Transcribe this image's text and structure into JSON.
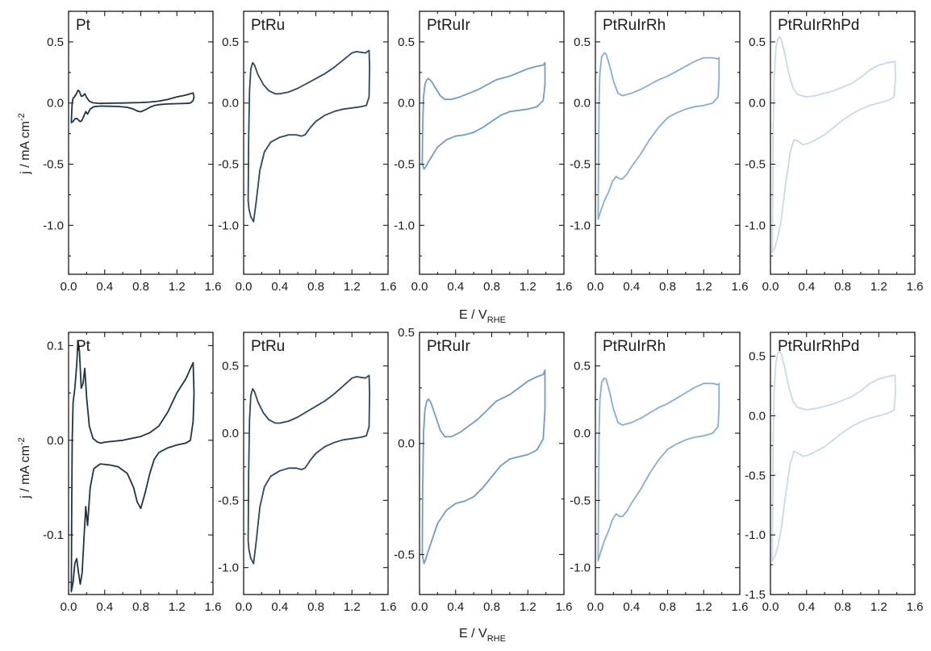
{
  "chart_data": {
    "type": "line",
    "description_axes": {
      "xlabel_main": "E / V",
      "xlabel_sub": "RHE",
      "ylabel_main": "j / mA cm",
      "ylabel_sup": "-2"
    },
    "colors": {
      "Pt": "#1e3448",
      "PtRu": "#2c4860",
      "PtRuIr": "#6f9cc6",
      "PtRuIrRh": "#85aed4",
      "PtRuIrRhPd": "#c6daec"
    },
    "x_ticks": [
      "0.0",
      "0.4",
      "0.8",
      "1.2",
      "1.6"
    ],
    "xlim": [
      0,
      1.6
    ],
    "rows": [
      {
        "row": "top",
        "panels": [
          {
            "title": "Pt",
            "series": "Pt",
            "ylim": [
              -1.4,
              0.75
            ],
            "y_ticks": [
              -1.0,
              -0.5,
              0.0,
              0.5
            ],
            "y_labels": [
              "-1.0",
              "-0.5",
              "0.0",
              "0.5"
            ],
            "show_ylabels": true
          },
          {
            "title": "PtRu",
            "series": "PtRu",
            "ylim": [
              -1.4,
              0.75
            ],
            "y_ticks": [
              -1.0,
              -0.5,
              0.0,
              0.5
            ],
            "y_labels": [
              "-1.0",
              "-0.5",
              "0.0",
              "0.5"
            ],
            "show_ylabels": true
          },
          {
            "title": "PtRuIr",
            "series": "PtRuIr",
            "ylim": [
              -1.4,
              0.75
            ],
            "y_ticks": [
              -1.0,
              -0.5,
              0.0,
              0.5
            ],
            "y_labels": [
              "-1.0",
              "-0.5",
              "0.0",
              "0.5"
            ],
            "show_ylabels": true
          },
          {
            "title": "PtRuIrRh",
            "series": "PtRuIrRh",
            "ylim": [
              -1.4,
              0.75
            ],
            "y_ticks": [
              -1.0,
              -0.5,
              0.0,
              0.5
            ],
            "y_labels": [
              "-1.0",
              "-0.5",
              "0.0",
              "0.5"
            ],
            "show_ylabels": true
          },
          {
            "title": "PtRuIrRhPd",
            "series": "PtRuIrRhPd",
            "ylim": [
              -1.4,
              0.75
            ],
            "y_ticks": [
              -1.0,
              -0.5,
              0.0,
              0.5
            ],
            "y_labels": [
              "-1.0",
              "-0.5",
              "0.0",
              "0.5"
            ],
            "show_ylabels": true
          }
        ]
      },
      {
        "row": "bottom",
        "panels": [
          {
            "title": "Pt",
            "series": "Pt",
            "ylim": [
              -0.163,
              0.114
            ],
            "y_ticks": [
              -0.1,
              0.0,
              0.1
            ],
            "y_labels": [
              "-0.1",
              "0.0",
              "0.1"
            ],
            "show_ylabels": true
          },
          {
            "title": "PtRu",
            "series": "PtRu",
            "ylim": [
              -1.2,
              0.75
            ],
            "y_ticks": [
              -1.0,
              -0.5,
              0.0,
              0.5
            ],
            "y_labels": [
              "-1.0",
              "-0.5",
              "0.0",
              "0.5"
            ],
            "show_ylabels": true
          },
          {
            "title": "PtRuIr",
            "series": "PtRuIr",
            "ylim": [
              -0.68,
              0.5
            ],
            "y_ticks": [
              -0.5,
              0.0,
              0.5
            ],
            "y_labels": [
              "-0.5",
              "0.0",
              "0.5"
            ],
            "show_ylabels": true
          },
          {
            "title": "PtRuIrRh",
            "series": "PtRuIrRh",
            "ylim": [
              -1.2,
              0.75
            ],
            "y_ticks": [
              -1.0,
              -0.5,
              0.0,
              0.5
            ],
            "y_labels": [
              "-1.0",
              "-0.5",
              "0.0",
              "0.5"
            ],
            "show_ylabels": true
          },
          {
            "title": "PtRuIrRhPd",
            "series": "PtRuIrRhPd",
            "ylim": [
              -1.5,
              0.7
            ],
            "y_ticks": [
              -1.5,
              -1.0,
              -0.5,
              0.0,
              0.5
            ],
            "y_labels": [
              "-1.5",
              "-1.0",
              "-0.5",
              "0.0",
              "0.5"
            ],
            "show_ylabels": true
          }
        ]
      }
    ],
    "series": {
      "Pt": [
        [
          0.03,
          -0.16
        ],
        [
          0.035,
          -0.07
        ],
        [
          0.04,
          0.0
        ],
        [
          0.05,
          0.04
        ],
        [
          0.07,
          0.055
        ],
        [
          0.09,
          0.08
        ],
        [
          0.105,
          0.105
        ],
        [
          0.12,
          0.095
        ],
        [
          0.14,
          0.055
        ],
        [
          0.16,
          0.06
        ],
        [
          0.18,
          0.076
        ],
        [
          0.2,
          0.045
        ],
        [
          0.23,
          0.015
        ],
        [
          0.27,
          0.002
        ],
        [
          0.32,
          -0.002
        ],
        [
          0.36,
          -0.003
        ],
        [
          0.4,
          -0.002
        ],
        [
          0.6,
          0.0
        ],
        [
          0.8,
          0.004
        ],
        [
          0.9,
          0.008
        ],
        [
          1.0,
          0.015
        ],
        [
          1.1,
          0.03
        ],
        [
          1.2,
          0.05
        ],
        [
          1.3,
          0.065
        ],
        [
          1.38,
          0.082
        ],
        [
          1.39,
          0.05
        ],
        [
          1.38,
          0.02
        ],
        [
          1.35,
          0.0
        ],
        [
          1.3,
          -0.003
        ],
        [
          1.2,
          -0.005
        ],
        [
          1.1,
          -0.008
        ],
        [
          1.0,
          -0.013
        ],
        [
          0.95,
          -0.02
        ],
        [
          0.9,
          -0.035
        ],
        [
          0.85,
          -0.055
        ],
        [
          0.8,
          -0.072
        ],
        [
          0.76,
          -0.065
        ],
        [
          0.72,
          -0.05
        ],
        [
          0.65,
          -0.035
        ],
        [
          0.55,
          -0.028
        ],
        [
          0.45,
          -0.026
        ],
        [
          0.35,
          -0.025
        ],
        [
          0.28,
          -0.03
        ],
        [
          0.24,
          -0.05
        ],
        [
          0.21,
          -0.09
        ],
        [
          0.19,
          -0.07
        ],
        [
          0.17,
          -0.105
        ],
        [
          0.15,
          -0.14
        ],
        [
          0.13,
          -0.152
        ],
        [
          0.11,
          -0.14
        ],
        [
          0.09,
          -0.125
        ],
        [
          0.07,
          -0.13
        ],
        [
          0.05,
          -0.15
        ],
        [
          0.03,
          -0.16
        ]
      ],
      "PtRu": [
        [
          0.05,
          -0.8
        ],
        [
          0.055,
          -0.3
        ],
        [
          0.065,
          0.1
        ],
        [
          0.08,
          0.28
        ],
        [
          0.1,
          0.33
        ],
        [
          0.12,
          0.31
        ],
        [
          0.16,
          0.23
        ],
        [
          0.22,
          0.15
        ],
        [
          0.28,
          0.1
        ],
        [
          0.35,
          0.075
        ],
        [
          0.4,
          0.075
        ],
        [
          0.5,
          0.09
        ],
        [
          0.6,
          0.12
        ],
        [
          0.7,
          0.16
        ],
        [
          0.8,
          0.2
        ],
        [
          0.9,
          0.24
        ],
        [
          1.0,
          0.29
        ],
        [
          1.1,
          0.35
        ],
        [
          1.2,
          0.41
        ],
        [
          1.25,
          0.42
        ],
        [
          1.3,
          0.415
        ],
        [
          1.35,
          0.41
        ],
        [
          1.39,
          0.43
        ],
        [
          1.395,
          0.3
        ],
        [
          1.39,
          0.05
        ],
        [
          1.36,
          -0.02
        ],
        [
          1.3,
          -0.03
        ],
        [
          1.2,
          -0.04
        ],
        [
          1.1,
          -0.05
        ],
        [
          1.0,
          -0.07
        ],
        [
          0.9,
          -0.1
        ],
        [
          0.8,
          -0.15
        ],
        [
          0.74,
          -0.2
        ],
        [
          0.68,
          -0.26
        ],
        [
          0.64,
          -0.27
        ],
        [
          0.58,
          -0.26
        ],
        [
          0.5,
          -0.26
        ],
        [
          0.4,
          -0.28
        ],
        [
          0.3,
          -0.32
        ],
        [
          0.23,
          -0.4
        ],
        [
          0.18,
          -0.55
        ],
        [
          0.14,
          -0.8
        ],
        [
          0.11,
          -0.97
        ],
        [
          0.08,
          -0.93
        ],
        [
          0.06,
          -0.87
        ],
        [
          0.05,
          -0.8
        ]
      ],
      "PtRuIr": [
        [
          0.03,
          -0.5
        ],
        [
          0.035,
          -0.2
        ],
        [
          0.045,
          0.05
        ],
        [
          0.06,
          0.15
        ],
        [
          0.08,
          0.19
        ],
        [
          0.1,
          0.2
        ],
        [
          0.13,
          0.18
        ],
        [
          0.18,
          0.12
        ],
        [
          0.23,
          0.06
        ],
        [
          0.28,
          0.03
        ],
        [
          0.35,
          0.03
        ],
        [
          0.45,
          0.05
        ],
        [
          0.55,
          0.08
        ],
        [
          0.65,
          0.11
        ],
        [
          0.75,
          0.15
        ],
        [
          0.85,
          0.19
        ],
        [
          1.0,
          0.22
        ],
        [
          1.1,
          0.25
        ],
        [
          1.2,
          0.28
        ],
        [
          1.3,
          0.3
        ],
        [
          1.37,
          0.31
        ],
        [
          1.39,
          0.33
        ],
        [
          1.39,
          0.15
        ],
        [
          1.37,
          0.02
        ],
        [
          1.3,
          -0.03
        ],
        [
          1.2,
          -0.05
        ],
        [
          1.1,
          -0.06
        ],
        [
          1.0,
          -0.07
        ],
        [
          0.9,
          -0.1
        ],
        [
          0.8,
          -0.15
        ],
        [
          0.7,
          -0.2
        ],
        [
          0.6,
          -0.24
        ],
        [
          0.5,
          -0.26
        ],
        [
          0.4,
          -0.27
        ],
        [
          0.3,
          -0.3
        ],
        [
          0.2,
          -0.36
        ],
        [
          0.15,
          -0.42
        ],
        [
          0.1,
          -0.48
        ],
        [
          0.07,
          -0.52
        ],
        [
          0.05,
          -0.54
        ],
        [
          0.03,
          -0.5
        ]
      ],
      "PtRuIrRh": [
        [
          0.03,
          -0.95
        ],
        [
          0.035,
          -0.5
        ],
        [
          0.04,
          0.0
        ],
        [
          0.05,
          0.25
        ],
        [
          0.07,
          0.38
        ],
        [
          0.1,
          0.41
        ],
        [
          0.12,
          0.4
        ],
        [
          0.16,
          0.3
        ],
        [
          0.2,
          0.18
        ],
        [
          0.25,
          0.08
        ],
        [
          0.3,
          0.06
        ],
        [
          0.4,
          0.08
        ],
        [
          0.5,
          0.11
        ],
        [
          0.6,
          0.15
        ],
        [
          0.7,
          0.19
        ],
        [
          0.8,
          0.22
        ],
        [
          0.9,
          0.26
        ],
        [
          1.0,
          0.3
        ],
        [
          1.1,
          0.34
        ],
        [
          1.2,
          0.37
        ],
        [
          1.3,
          0.37
        ],
        [
          1.36,
          0.36
        ],
        [
          1.37,
          0.37
        ],
        [
          1.37,
          0.2
        ],
        [
          1.36,
          0.05
        ],
        [
          1.3,
          0.0
        ],
        [
          1.2,
          -0.02
        ],
        [
          1.1,
          -0.03
        ],
        [
          1.0,
          -0.05
        ],
        [
          0.9,
          -0.08
        ],
        [
          0.8,
          -0.12
        ],
        [
          0.7,
          -0.2
        ],
        [
          0.6,
          -0.3
        ],
        [
          0.5,
          -0.42
        ],
        [
          0.4,
          -0.52
        ],
        [
          0.35,
          -0.58
        ],
        [
          0.3,
          -0.62
        ],
        [
          0.27,
          -0.62
        ],
        [
          0.23,
          -0.6
        ],
        [
          0.19,
          -0.64
        ],
        [
          0.15,
          -0.72
        ],
        [
          0.1,
          -0.8
        ],
        [
          0.06,
          -0.88
        ],
        [
          0.03,
          -0.95
        ]
      ],
      "PtRuIrRhPd": [
        [
          0.02,
          -1.22
        ],
        [
          0.025,
          -0.8
        ],
        [
          0.03,
          -0.2
        ],
        [
          0.04,
          0.2
        ],
        [
          0.06,
          0.45
        ],
        [
          0.08,
          0.52
        ],
        [
          0.1,
          0.54
        ],
        [
          0.12,
          0.52
        ],
        [
          0.16,
          0.4
        ],
        [
          0.2,
          0.25
        ],
        [
          0.25,
          0.12
        ],
        [
          0.3,
          0.07
        ],
        [
          0.4,
          0.05
        ],
        [
          0.5,
          0.06
        ],
        [
          0.6,
          0.08
        ],
        [
          0.7,
          0.1
        ],
        [
          0.8,
          0.13
        ],
        [
          0.9,
          0.16
        ],
        [
          1.0,
          0.21
        ],
        [
          1.1,
          0.27
        ],
        [
          1.2,
          0.31
        ],
        [
          1.3,
          0.33
        ],
        [
          1.38,
          0.34
        ],
        [
          1.385,
          0.2
        ],
        [
          1.37,
          0.05
        ],
        [
          1.3,
          0.02
        ],
        [
          1.2,
          0.0
        ],
        [
          1.1,
          -0.02
        ],
        [
          1.0,
          -0.05
        ],
        [
          0.9,
          -0.09
        ],
        [
          0.8,
          -0.14
        ],
        [
          0.7,
          -0.2
        ],
        [
          0.6,
          -0.26
        ],
        [
          0.5,
          -0.3
        ],
        [
          0.42,
          -0.33
        ],
        [
          0.36,
          -0.34
        ],
        [
          0.3,
          -0.31
        ],
        [
          0.26,
          -0.3
        ],
        [
          0.22,
          -0.4
        ],
        [
          0.17,
          -0.65
        ],
        [
          0.12,
          -0.95
        ],
        [
          0.08,
          -1.1
        ],
        [
          0.05,
          -1.18
        ],
        [
          0.02,
          -1.22
        ]
      ]
    }
  }
}
